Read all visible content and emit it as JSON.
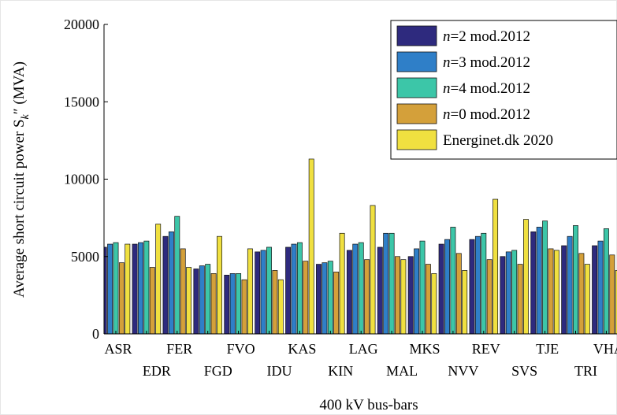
{
  "chart_data": {
    "type": "bar",
    "xlabel": "400 kV bus-bars",
    "ylabel": "Average short circuit power S",
    "ylabel_subscript": "k",
    "ylabel_suffix": "″ (MVA)",
    "ylim": [
      0,
      20000
    ],
    "yticks": [
      0,
      5000,
      10000,
      15000,
      20000
    ],
    "grid": false,
    "legend_placement": "top-right",
    "categories": [
      "ASR",
      "EDR",
      "FER",
      "FGD",
      "FVO",
      "IDU",
      "KAS",
      "KIN",
      "LAG",
      "MAL",
      "MKS",
      "NVV",
      "REV",
      "SVS",
      "TJE",
      "TRI",
      "VHA"
    ],
    "series": [
      {
        "name_italic": "n",
        "name": "=2 mod.2012",
        "color": "#2e2a7e",
        "values": [
          5600,
          5800,
          6300,
          4200,
          3800,
          5300,
          5600,
          4500,
          5400,
          5600,
          5000,
          5800,
          6100,
          5000,
          6600,
          5700,
          5700
        ]
      },
      {
        "name_italic": "n",
        "name": "=3 mod.2012",
        "color": "#2f7fc8",
        "values": [
          5800,
          5900,
          6600,
          4400,
          3900,
          5400,
          5800,
          4600,
          5800,
          6500,
          5500,
          6100,
          6300,
          5300,
          6900,
          6300,
          6000
        ]
      },
      {
        "name_italic": "n",
        "name": "=4 mod.2012",
        "color": "#3cc6a8",
        "values": [
          5900,
          6000,
          7600,
          4500,
          3900,
          5600,
          5900,
          4700,
          5900,
          6500,
          6000,
          6900,
          6500,
          5400,
          7300,
          7000,
          6800
        ]
      },
      {
        "name_italic": "n",
        "name": "=0 mod.2012",
        "color": "#d4a03a",
        "values": [
          4600,
          4300,
          5500,
          3900,
          3500,
          4100,
          4700,
          4000,
          4800,
          5000,
          4500,
          5200,
          4800,
          4500,
          5500,
          5200,
          5100
        ]
      },
      {
        "name_italic": "",
        "name": "Energinet.dk 2020",
        "color": "#f0e040",
        "values": [
          5800,
          7100,
          4300,
          6300,
          5500,
          3500,
          11300,
          6500,
          8300,
          4800,
          3900,
          4100,
          8700,
          7400,
          5400,
          4500,
          4100
        ]
      }
    ]
  }
}
